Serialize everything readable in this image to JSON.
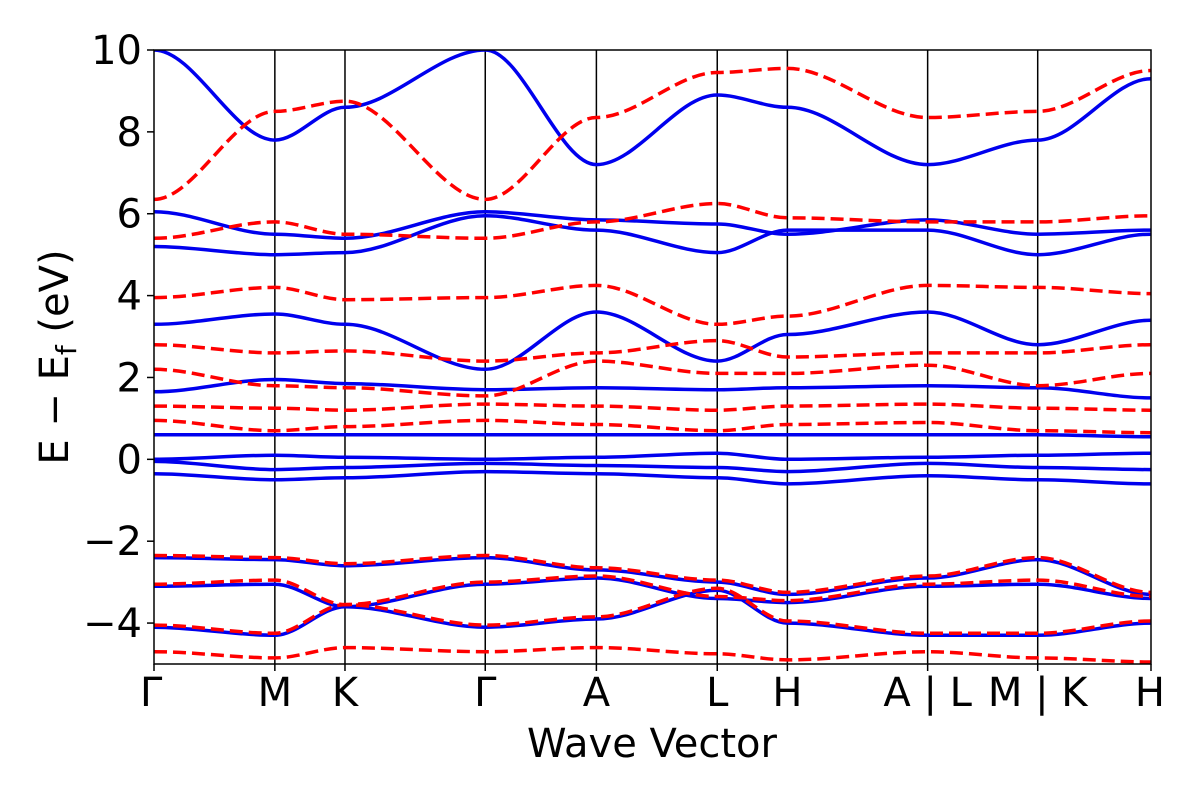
{
  "chart_data": {
    "type": "line",
    "xlabel": "Wave Vector",
    "ylabel": "E − E_f (eV)",
    "ylabel_parts": {
      "prefix": "E  −  E",
      "subscript": "f",
      "suffix": " (eV)"
    },
    "ylim": [
      -5,
      10
    ],
    "y_ticks": [
      {
        "value": -4,
        "label": "−4"
      },
      {
        "value": -2,
        "label": "−2"
      },
      {
        "value": 0,
        "label": "0"
      },
      {
        "value": 2,
        "label": "2"
      },
      {
        "value": 4,
        "label": "4"
      },
      {
        "value": 6,
        "label": "6"
      },
      {
        "value": 8,
        "label": "8"
      },
      {
        "value": 10,
        "label": "10"
      }
    ],
    "grid": false,
    "legend": "none",
    "path_range": [
      0,
      9.24
    ],
    "high_symmetry_points": [
      {
        "label": "Γ",
        "x": 0
      },
      {
        "label": "M",
        "x": 1.12
      },
      {
        "label": "K",
        "x": 1.77
      },
      {
        "label": "Γ",
        "x": 3.07
      },
      {
        "label": "A",
        "x": 4.1
      },
      {
        "label": "L",
        "x": 5.22
      },
      {
        "label": "H",
        "x": 5.87
      },
      {
        "label": "A | L",
        "x": 7.17
      },
      {
        "label": "M | K",
        "x": 8.19
      },
      {
        "label": "H",
        "x": 9.24
      }
    ],
    "series": [
      {
        "style": "solid",
        "color": "#0000ee",
        "bands": [
          {
            "x": [
              0,
              1.12,
              1.77,
              3.07,
              4.1,
              5.22,
              5.87,
              7.17,
              8.19,
              9.24
            ],
            "y": [
              -0.35,
              -0.5,
              -0.45,
              -0.3,
              -0.35,
              -0.45,
              -0.6,
              -0.4,
              -0.5,
              -0.6
            ]
          },
          {
            "x": [
              0,
              1.12,
              1.77,
              3.07,
              4.1,
              5.22,
              5.87,
              7.17,
              8.19,
              9.24
            ],
            "y": [
              -0.05,
              -0.25,
              -0.2,
              -0.1,
              -0.15,
              -0.2,
              -0.3,
              -0.1,
              -0.2,
              -0.25
            ]
          },
          {
            "x": [
              0,
              1.12,
              1.77,
              3.07,
              4.1,
              5.22,
              5.87,
              7.17,
              8.19,
              9.24
            ],
            "y": [
              0.0,
              0.1,
              0.05,
              0.0,
              0.05,
              0.15,
              0.0,
              0.05,
              0.1,
              0.15
            ]
          },
          {
            "x": [
              0,
              1.12,
              1.77,
              3.07,
              4.1,
              5.22,
              5.87,
              7.17,
              8.19,
              9.24
            ],
            "y": [
              0.6,
              0.6,
              0.6,
              0.6,
              0.6,
              0.6,
              0.6,
              0.6,
              0.6,
              0.55
            ]
          },
          {
            "x": [
              0,
              1.12,
              1.77,
              3.07,
              4.1,
              5.22,
              5.87,
              7.17,
              8.19,
              9.24
            ],
            "y": [
              1.65,
              1.95,
              1.85,
              1.7,
              1.75,
              1.7,
              1.75,
              1.8,
              1.75,
              1.5
            ]
          },
          {
            "x": [
              0,
              1.12,
              1.77,
              3.07,
              4.1,
              5.22,
              5.87,
              7.17,
              8.19,
              9.24
            ],
            "y": [
              3.3,
              3.55,
              3.3,
              2.2,
              3.6,
              2.4,
              3.05,
              3.6,
              2.8,
              3.4
            ]
          },
          {
            "x": [
              0,
              1.12,
              1.77,
              3.07,
              4.1,
              5.22,
              5.87,
              7.17,
              8.19,
              9.24
            ],
            "y": [
              5.2,
              5.0,
              5.05,
              5.95,
              5.6,
              5.05,
              5.6,
              5.6,
              5.0,
              5.5
            ]
          },
          {
            "x": [
              0,
              1.12,
              1.77,
              3.07,
              4.1,
              5.22,
              5.87,
              7.17,
              8.19,
              9.24
            ],
            "y": [
              6.05,
              5.5,
              5.4,
              6.05,
              5.85,
              5.75,
              5.5,
              5.85,
              5.5,
              5.6
            ]
          },
          {
            "x": [
              0,
              1.12,
              1.77,
              3.07,
              4.1,
              5.22,
              5.87,
              7.17,
              8.19,
              9.24
            ],
            "y": [
              10.0,
              7.8,
              8.6,
              10.0,
              7.2,
              8.9,
              8.6,
              7.2,
              7.8,
              9.3
            ]
          },
          {
            "x": [
              0,
              1.12,
              1.77,
              3.07,
              4.1,
              5.22,
              5.87,
              7.17,
              8.19,
              9.24
            ],
            "y": [
              -2.4,
              -2.45,
              -2.6,
              -2.4,
              -2.7,
              -3.0,
              -3.3,
              -2.9,
              -2.45,
              -3.3
            ]
          },
          {
            "x": [
              0,
              1.12,
              1.77,
              3.07,
              4.1,
              5.22,
              5.87,
              7.17,
              8.19,
              9.24
            ],
            "y": [
              -3.1,
              -3.05,
              -3.6,
              -3.05,
              -2.9,
              -3.4,
              -3.5,
              -3.1,
              -3.05,
              -3.4
            ]
          },
          {
            "x": [
              0,
              1.12,
              1.77,
              3.07,
              4.1,
              5.22,
              5.87,
              7.17,
              8.19,
              9.24
            ],
            "y": [
              -4.1,
              -4.3,
              -3.6,
              -4.1,
              -3.9,
              -3.2,
              -4.0,
              -4.3,
              -4.3,
              -4.0
            ]
          }
        ]
      },
      {
        "style": "dashed",
        "color": "#ff0000",
        "bands": [
          {
            "x": [
              0,
              1.12,
              1.77,
              3.07,
              4.1,
              5.22,
              5.87,
              7.17,
              8.19,
              9.24
            ],
            "y": [
              0.95,
              0.7,
              0.8,
              0.95,
              0.85,
              0.7,
              0.85,
              0.9,
              0.7,
              0.65
            ]
          },
          {
            "x": [
              0,
              1.12,
              1.77,
              3.07,
              4.1,
              5.22,
              5.87,
              7.17,
              8.19,
              9.24
            ],
            "y": [
              1.3,
              1.25,
              1.2,
              1.35,
              1.3,
              1.2,
              1.3,
              1.35,
              1.25,
              1.2
            ]
          },
          {
            "x": [
              0,
              1.12,
              1.77,
              3.07,
              4.1,
              5.22,
              5.87,
              7.17,
              8.19,
              9.24
            ],
            "y": [
              2.2,
              1.8,
              1.75,
              1.55,
              2.4,
              2.1,
              2.1,
              2.3,
              1.8,
              2.1
            ]
          },
          {
            "x": [
              0,
              1.12,
              1.77,
              3.07,
              4.1,
              5.22,
              5.87,
              7.17,
              8.19,
              9.24
            ],
            "y": [
              2.8,
              2.6,
              2.65,
              2.4,
              2.6,
              2.9,
              2.5,
              2.6,
              2.6,
              2.8
            ]
          },
          {
            "x": [
              0,
              1.12,
              1.77,
              3.07,
              4.1,
              5.22,
              5.87,
              7.17,
              8.19,
              9.24
            ],
            "y": [
              3.95,
              4.2,
              3.9,
              3.95,
              4.25,
              3.3,
              3.5,
              4.25,
              4.2,
              4.05
            ]
          },
          {
            "x": [
              0,
              1.12,
              1.77,
              3.07,
              4.1,
              5.22,
              5.87,
              7.17,
              8.19,
              9.24
            ],
            "y": [
              5.4,
              5.8,
              5.5,
              5.4,
              5.8,
              6.25,
              5.9,
              5.8,
              5.8,
              5.95
            ]
          },
          {
            "x": [
              0,
              1.12,
              1.77,
              3.07,
              4.1,
              5.22,
              5.87,
              7.17,
              8.19,
              9.24
            ],
            "y": [
              6.35,
              8.5,
              8.75,
              6.35,
              8.35,
              9.45,
              9.55,
              8.35,
              8.5,
              9.5
            ]
          },
          {
            "x": [
              0,
              1.12,
              1.77,
              3.07,
              4.1,
              5.22,
              5.87,
              7.17,
              8.19,
              9.24
            ],
            "y": [
              -2.35,
              -2.4,
              -2.55,
              -2.35,
              -2.65,
              -2.95,
              -3.25,
              -2.85,
              -2.4,
              -3.25
            ]
          },
          {
            "x": [
              0,
              1.12,
              1.77,
              3.07,
              4.1,
              5.22,
              5.87,
              7.17,
              8.19,
              9.24
            ],
            "y": [
              -3.05,
              -2.95,
              -3.55,
              -3.0,
              -2.85,
              -3.35,
              -3.45,
              -3.05,
              -2.95,
              -3.35
            ]
          },
          {
            "x": [
              0,
              1.12,
              1.77,
              3.07,
              4.1,
              5.22,
              5.87,
              7.17,
              8.19,
              9.24
            ],
            "y": [
              -4.05,
              -4.25,
              -3.55,
              -4.05,
              -3.85,
              -3.15,
              -3.95,
              -4.25,
              -4.25,
              -3.95
            ]
          },
          {
            "x": [
              0,
              1.12,
              1.77,
              3.07,
              4.1,
              5.22,
              5.87,
              7.17,
              8.19,
              9.24
            ],
            "y": [
              -4.7,
              -4.85,
              -4.6,
              -4.7,
              -4.6,
              -4.75,
              -4.9,
              -4.7,
              -4.85,
              -4.95
            ]
          }
        ]
      }
    ]
  }
}
